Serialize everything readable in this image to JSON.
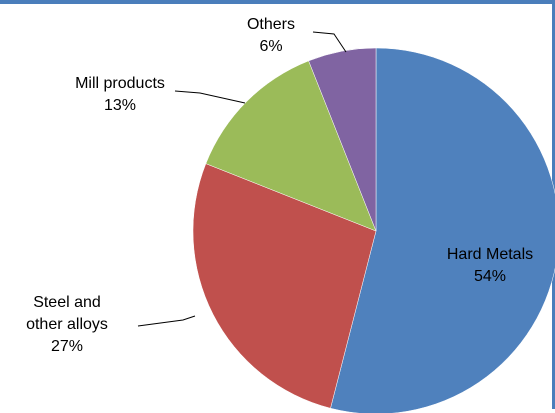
{
  "chart_data": {
    "type": "pie",
    "slices": [
      {
        "label_lines": [
          "Hard Metals",
          "54%"
        ],
        "name": "Hard Metals",
        "value": 54,
        "color": "#4f81bd"
      },
      {
        "label_lines": [
          "Steel and",
          "other alloys",
          "27%"
        ],
        "name": "Steel and other alloys",
        "value": 27,
        "color": "#c0504d"
      },
      {
        "label_lines": [
          "Mill products",
          "13%"
        ],
        "name": "Mill products",
        "value": 13,
        "color": "#9bbb59"
      },
      {
        "label_lines": [
          "Others",
          "6%"
        ],
        "name": "Others",
        "value": 6,
        "color": "#8064a2"
      }
    ],
    "start_angle_deg": 0,
    "direction": "clockwise",
    "legend": "none"
  }
}
